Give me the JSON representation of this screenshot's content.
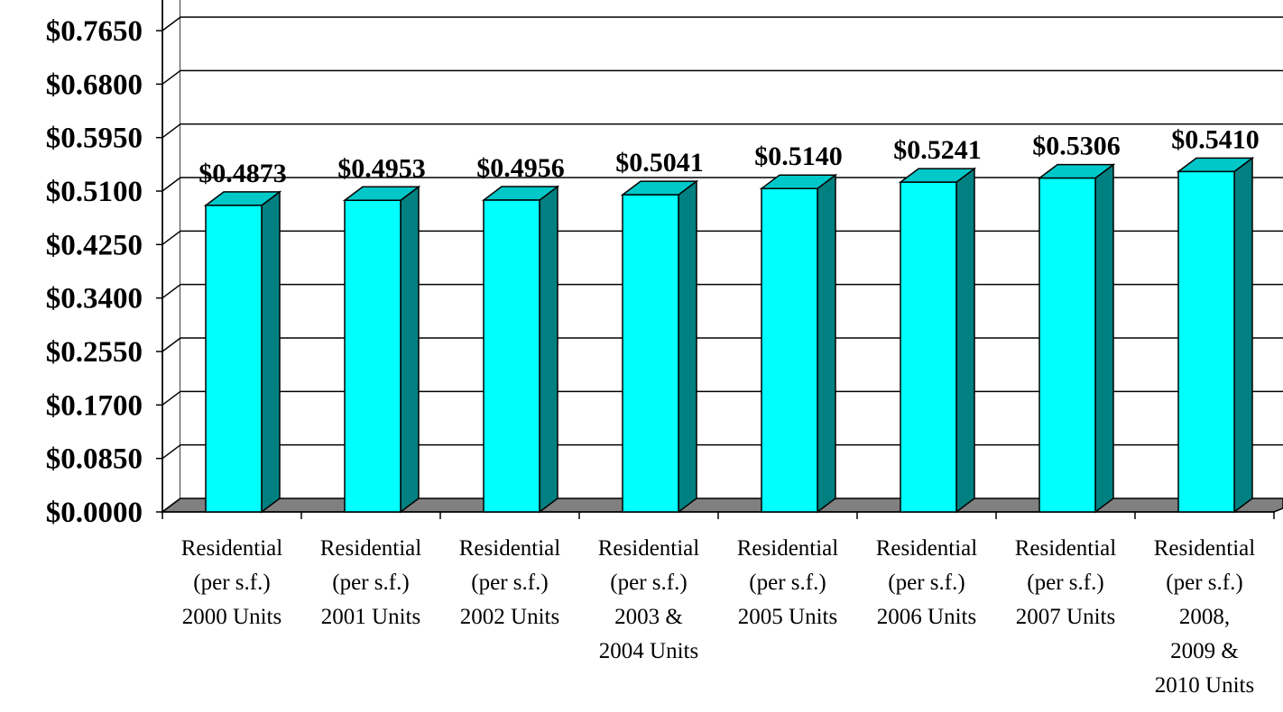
{
  "chart_data": {
    "type": "bar",
    "title": "",
    "xlabel": "",
    "ylabel": "",
    "ylim": [
      0,
      0.85
    ],
    "yticks": [
      "$0.0000",
      "$0.0850",
      "$0.1700",
      "$0.2550",
      "$0.3400",
      "$0.4250",
      "$0.5100",
      "$0.5950",
      "$0.6800",
      "$0.7650"
    ],
    "grid": true,
    "legend": "none",
    "style": "3d-column",
    "colors": {
      "front": "#00FFFF",
      "top": "#00C8C8",
      "side": "#008080",
      "floor": "#808080"
    },
    "categories": [
      [
        "Residential",
        "(per s.f.)",
        "2000 Units"
      ],
      [
        "Residential",
        "(per s.f.)",
        "2001 Units"
      ],
      [
        "Residential",
        "(per s.f.)",
        "2002 Units"
      ],
      [
        "Residential",
        "(per s.f.)",
        "2003 &",
        "2004 Units"
      ],
      [
        "Residential",
        "(per s.f.)",
        "2005 Units"
      ],
      [
        "Residential",
        "(per s.f.)",
        "2006 Units"
      ],
      [
        "Residential",
        "(per s.f.)",
        "2007 Units"
      ],
      [
        "Residential",
        "(per s.f.)",
        "2008,",
        "2009 &",
        "2010 Units"
      ]
    ],
    "values": [
      0.4873,
      0.4953,
      0.4956,
      0.5041,
      0.514,
      0.5241,
      0.5306,
      0.541
    ],
    "data_labels": [
      "$0.4873",
      "$0.4953",
      "$0.4956",
      "$0.5041",
      "$0.5140",
      "$0.5241",
      "$0.5306",
      "$0.5410"
    ]
  }
}
